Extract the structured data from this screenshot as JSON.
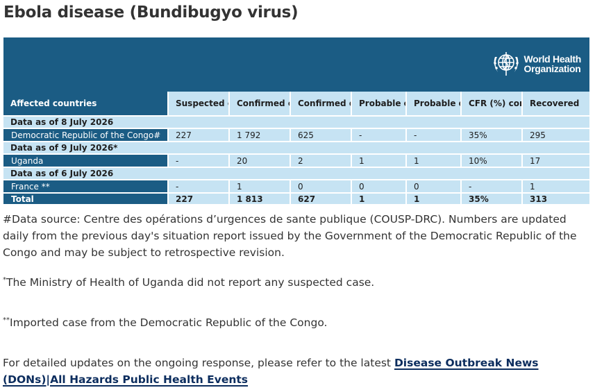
{
  "title": "Ebola disease (Bundibugyo virus)",
  "logo": {
    "line1": "World Health",
    "line2": "Organization",
    "brand_color": "#1b5c84"
  },
  "table": {
    "headers": [
      "Affected countries",
      "Suspected cases",
      "Confirmed cases",
      "Confirmed deaths",
      "Probable cases",
      "Probable deaths",
      "CFR (%) confirmed",
      "Recovered"
    ],
    "sections": [
      {
        "date_label": "Data as of 8 July 2026",
        "rows": [
          [
            "Democratic Republic of the Congo#",
            "227",
            "1 792",
            "625",
            "-",
            "-",
            "35%",
            "295"
          ]
        ]
      },
      {
        "date_label": "Data as of 9 July 2026*",
        "rows": [
          [
            "Uganda",
            "-",
            "20",
            "2",
            "1",
            "1",
            "10%",
            "17"
          ]
        ]
      },
      {
        "date_label": "Data as of 6 July 2026",
        "rows": [
          [
            "France **",
            "-",
            "1",
            "0",
            "0",
            "0",
            "-",
            "1"
          ]
        ]
      }
    ],
    "total": [
      "Total",
      "227",
      "1 813",
      "627",
      "1",
      "1",
      "35%",
      "313"
    ]
  },
  "notes": {
    "data_source": "#Data source: Centre des opérations d’urgences de sante publique (COUSP-DRC). Numbers are updated daily from the previous day's situation report issued by the Government of the Democratic Republic of the Congo and may be subject to retrospective revision.",
    "uganda_mark": "*",
    "uganda_note": "The Ministry of Health of Uganda did not report any suspected case.",
    "france_mark": "**",
    "france_note": "Imported case from the Democratic Republic of the Congo.",
    "updates_prefix": "For detailed updates on the ongoing response, please refer to the latest ",
    "updates_link": "Disease Outbreak News (DONs)|All Hazards Public Health Events"
  }
}
